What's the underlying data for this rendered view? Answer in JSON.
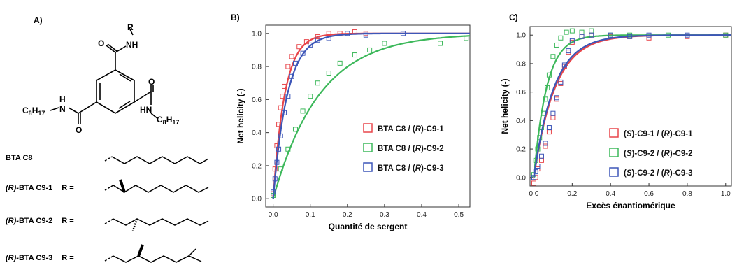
{
  "panel_a": {
    "label": "A)",
    "molecule": {
      "r_label": "R",
      "nh_top": "NH",
      "o_top": "O",
      "h_left": "H",
      "n_left": "N",
      "c8h17_left": "C8H17",
      "o_left": "O",
      "o_right": "O",
      "hn_right": "HN",
      "c8h17_right": "C8H17"
    },
    "rows": [
      {
        "name": "BTA C8",
        "prefix": "",
        "r": ""
      },
      {
        "name": "BTA C9-1",
        "prefix": "(R)-",
        "r": "R ="
      },
      {
        "name": "BTA C9-2",
        "prefix": "(R)-",
        "r": "R ="
      },
      {
        "name": "BTA C9-3",
        "prefix": "(R)-",
        "r": "R ="
      }
    ]
  },
  "chart_data": [
    {
      "type": "scatter",
      "panel": "B)",
      "xlabel": "Quantité de sergent",
      "ylabel": "Net helicity (-)",
      "xlim": [
        -0.02,
        0.53
      ],
      "ylim": [
        -0.05,
        1.05
      ],
      "xticks": [
        "0.0",
        "0.1",
        "0.2",
        "0.3",
        "0.4",
        "0.5"
      ],
      "yticks": [
        "0.0",
        "0.2",
        "0.4",
        "0.6",
        "0.8",
        "1.0"
      ],
      "legend_position": "center-right",
      "series": [
        {
          "name": "BTA C8 / (R)-C9-1",
          "color": "#e8454a",
          "x": [
            0.0,
            0.005,
            0.01,
            0.015,
            0.02,
            0.025,
            0.03,
            0.04,
            0.05,
            0.07,
            0.09,
            0.12,
            0.15,
            0.18,
            0.22,
            0.25
          ],
          "y": [
            0.03,
            0.18,
            0.32,
            0.45,
            0.55,
            0.62,
            0.68,
            0.8,
            0.86,
            0.92,
            0.95,
            0.98,
            1.0,
            1.0,
            1.01,
            1.0
          ],
          "fit_k": 32
        },
        {
          "name": "BTA C8 / (R)-C9-2",
          "color": "#3cb85a",
          "x": [
            0.0,
            0.02,
            0.04,
            0.06,
            0.08,
            0.1,
            0.12,
            0.15,
            0.18,
            0.22,
            0.26,
            0.3,
            0.45,
            0.52
          ],
          "y": [
            0.02,
            0.18,
            0.3,
            0.42,
            0.53,
            0.62,
            0.7,
            0.76,
            0.82,
            0.87,
            0.9,
            0.94,
            0.94,
            0.97
          ],
          "fit_k": 8
        },
        {
          "name": "BTA C8 / (R)-C9-3",
          "color": "#3d56b8",
          "x": [
            0.0,
            0.005,
            0.01,
            0.015,
            0.02,
            0.03,
            0.04,
            0.05,
            0.06,
            0.08,
            0.1,
            0.12,
            0.15,
            0.2,
            0.25,
            0.35
          ],
          "y": [
            0.04,
            0.12,
            0.22,
            0.3,
            0.38,
            0.52,
            0.62,
            0.74,
            0.82,
            0.88,
            0.93,
            0.96,
            0.97,
            1.0,
            0.99,
            1.0
          ],
          "fit_k": 26
        }
      ]
    },
    {
      "type": "scatter",
      "panel": "C)",
      "xlabel": "Excès énantiomérique",
      "ylabel": "Net helicity (-)",
      "xlim": [
        -0.02,
        1.03
      ],
      "ylim": [
        -0.06,
        1.06
      ],
      "xticks": [
        "0.0",
        "0.2",
        "0.4",
        "0.6",
        "0.8",
        "1.0"
      ],
      "yticks": [
        "0.0",
        "0.2",
        "0.4",
        "0.6",
        "0.8",
        "1.0"
      ],
      "legend_position": "center-right",
      "series": [
        {
          "name": "(S)-C9-1 / (R)-C9-1",
          "color": "#e8454a",
          "x": [
            0.0,
            0.01,
            0.02,
            0.04,
            0.06,
            0.08,
            0.1,
            0.12,
            0.14,
            0.16,
            0.18,
            0.2,
            0.25,
            0.3,
            0.4,
            0.5,
            0.6,
            0.8,
            1.0
          ],
          "y": [
            -0.04,
            0.0,
            0.06,
            0.12,
            0.22,
            0.32,
            0.42,
            0.55,
            0.66,
            0.78,
            0.88,
            0.95,
            0.99,
            1.0,
            0.99,
            0.99,
            0.98,
            0.99,
            1.0
          ],
          "fit_k": 9
        },
        {
          "name": "(S)-C9-2 / (R)-C9-2",
          "color": "#3cb85a",
          "x": [
            0.0,
            0.01,
            0.02,
            0.03,
            0.04,
            0.05,
            0.06,
            0.07,
            0.08,
            0.1,
            0.12,
            0.14,
            0.17,
            0.2,
            0.25,
            0.3,
            0.4,
            0.5,
            0.7,
            1.0
          ],
          "y": [
            0.02,
            0.12,
            0.2,
            0.28,
            0.35,
            0.45,
            0.55,
            0.63,
            0.72,
            0.85,
            0.93,
            0.98,
            1.02,
            1.03,
            1.02,
            1.03,
            1.0,
            1.0,
            1.0,
            1.0
          ],
          "fit_k": 15
        },
        {
          "name": "(S)-C9-2 / (R)-C9-3",
          "color": "#3d56b8",
          "x": [
            0.0,
            0.01,
            0.02,
            0.04,
            0.06,
            0.08,
            0.1,
            0.12,
            0.14,
            0.16,
            0.18,
            0.2,
            0.25,
            0.3,
            0.4,
            0.5,
            0.6,
            0.8
          ],
          "y": [
            0.0,
            0.04,
            0.08,
            0.15,
            0.24,
            0.35,
            0.45,
            0.56,
            0.67,
            0.79,
            0.89,
            0.96,
            0.99,
            1.0,
            1.0,
            0.99,
            1.0,
            1.0
          ],
          "fit_k": 9.5
        }
      ]
    }
  ]
}
